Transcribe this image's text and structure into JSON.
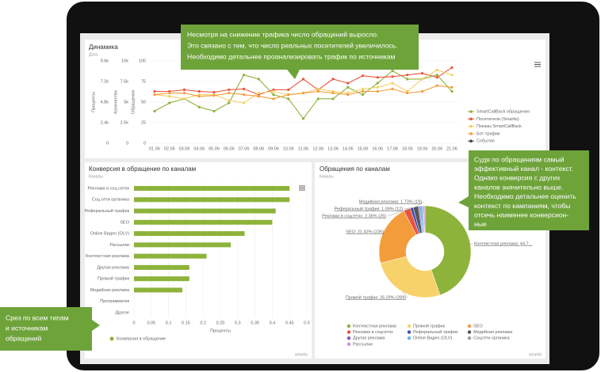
{
  "chart_data": [
    {
      "type": "line",
      "title": "Динамика",
      "filter": "Дата",
      "categories": [
        "01.06",
        "02.06",
        "03.06",
        "04.06",
        "05.06",
        "06.06",
        "07.06",
        "08.06",
        "09.06",
        "10.06",
        "11.06",
        "12.06",
        "13.06",
        "14.06",
        "15.06",
        "16.06",
        "17.06",
        "18.06",
        "19.06",
        "20.06",
        "21.06"
      ],
      "ylabel": "Обращения",
      "ylim": [
        0,
        100
      ],
      "yticks": [
        0,
        25,
        50,
        75,
        100
      ],
      "y2label": "Количество",
      "y2lim": [
        0,
        10000
      ],
      "y2ticks": [
        0,
        {
          "value": 2500,
          "label": "2.5k"
        },
        {
          "value": 5000,
          "label": "5k"
        },
        {
          "value": 7500,
          "label": "7.5k"
        },
        {
          "value": 10000,
          "label": "10k"
        }
      ],
      "y3label": "Проценты",
      "y3lim": [
        0,
        9600
      ],
      "y3ticks": [
        0,
        {
          "value": 2400,
          "label": "2.4k"
        },
        {
          "value": 4800,
          "label": "4.8k"
        },
        {
          "value": 7200,
          "label": "7.2k"
        },
        {
          "value": 9600,
          "label": "9.6k"
        }
      ],
      "grid": true,
      "series": [
        {
          "name": "SmartCallBack обращения",
          "color": "#8db33a",
          "values": [
            39,
            49,
            54,
            44,
            39,
            49,
            83,
            78,
            59,
            54,
            30,
            54,
            54,
            68,
            59,
            73,
            88,
            78,
            78,
            83,
            63
          ]
        },
        {
          "name": "Посетители (Smartis)",
          "color": "#e8553e",
          "values": [
            63,
            63,
            65,
            63,
            62,
            65,
            66,
            59,
            65,
            65,
            78,
            65,
            78,
            73,
            82,
            80,
            81,
            83,
            85,
            80,
            92
          ]
        },
        {
          "name": "Показы SmartCallBack",
          "color": "#f5cf63",
          "values": [
            59,
            57,
            54,
            59,
            59,
            52,
            49,
            61,
            63,
            59,
            61,
            66,
            63,
            61,
            66,
            68,
            73,
            63,
            78,
            89,
            83
          ]
        },
        {
          "name": "Бот-трафик",
          "color": "#f39c3c",
          "values": [
            59,
            61,
            61,
            57,
            58,
            61,
            59,
            57,
            54,
            59,
            61,
            63,
            61,
            59,
            63,
            63,
            66,
            61,
            63,
            70,
            68
          ]
        },
        {
          "name": "События",
          "color": "#444444",
          "values": [
            null,
            null,
            null,
            null,
            null,
            null,
            null,
            null,
            null,
            null,
            null,
            null,
            null,
            null,
            null,
            null,
            null,
            null,
            null,
            null,
            null
          ]
        }
      ],
      "watermark": "smartis"
    },
    {
      "type": "hbar",
      "title": "Конверсия в обращение по каналам",
      "filter": "Каналы",
      "categories": [
        "Реклама в соц.сетях",
        "Соц.сети органика",
        "Реферальный трафик",
        "SEO",
        "Online Видео (OLV)",
        "Рассылки",
        "Контекстная реклама",
        "Другая реклама",
        "Прямой трафик",
        "Медийная реклама",
        "Программатик",
        "Другое"
      ],
      "series": [
        {
          "name": "Конверсия в обращение",
          "color": "#8db33a",
          "values": [
            0.45,
            0.45,
            0.41,
            0.4,
            0.32,
            0.28,
            0.21,
            0.16,
            0.16,
            0.14,
            0,
            0
          ]
        }
      ],
      "xlabel": "Проценты",
      "xlim": [
        0,
        0.5
      ],
      "xticks": [
        0,
        0.05,
        0.1,
        0.15,
        0.2,
        0.25,
        0.3,
        0.35,
        0.4,
        0.45,
        0.5
      ],
      "grid": true,
      "watermark": "smartis"
    },
    {
      "type": "donut",
      "title": "Обращения по каналам",
      "filter": "Каналы",
      "categories": [
        "Контекстная реклама",
        "Прямой трафик",
        "SEO",
        "Реклама в соцсетях",
        "Реферальный трафик",
        "Медийная реклама",
        "Другая реклама",
        "Online Видео (OLV)",
        "Соцсети органика",
        "Рассылки"
      ],
      "values": [
        44.7,
        26.29,
        21.43,
        2.36,
        1.09,
        1.73,
        0.5,
        0.9,
        0.5,
        0.5
      ],
      "value_labels": [
        "Контекстная реклама: 44.7...",
        "Прямой трафик: 26.29% (289)",
        "SEO: 21.43% (236)",
        "Реклама в соцсетях: 2.36% (26)",
        "Реферальный трафик: 1.09% (12)",
        "Медийная реклама: 1.73% (19)",
        null,
        null,
        null,
        null
      ],
      "colors": [
        "#8db33a",
        "#f7d26a",
        "#f39c3c",
        "#e8553e",
        "#3f51b5",
        "#555555",
        "#7e57c2",
        "#64b5f6",
        "#9e9e9e",
        "#ce93d8"
      ],
      "watermark": "smartis"
    }
  ],
  "callouts": {
    "trend": [
      "Несмотря на снижение трафика число обращений выросло.",
      "Это связано с тем, что число реальных посетителей увеличилось.",
      "Необходимо детальнее проанализировать трафик по источникам"
    ],
    "channels": [
      "Судя по обращениям самый",
      "эффективный канал - контекст.",
      "Однако конверсия с других",
      "каналов значительно выше.",
      "Необходимо детальнее оценить",
      "контекст по кампаниям, чтобы",
      "отсечь наименее конверсион-",
      "ные"
    ],
    "scope": [
      "Срез по всем типам",
      "и источникам",
      "обращений"
    ]
  }
}
